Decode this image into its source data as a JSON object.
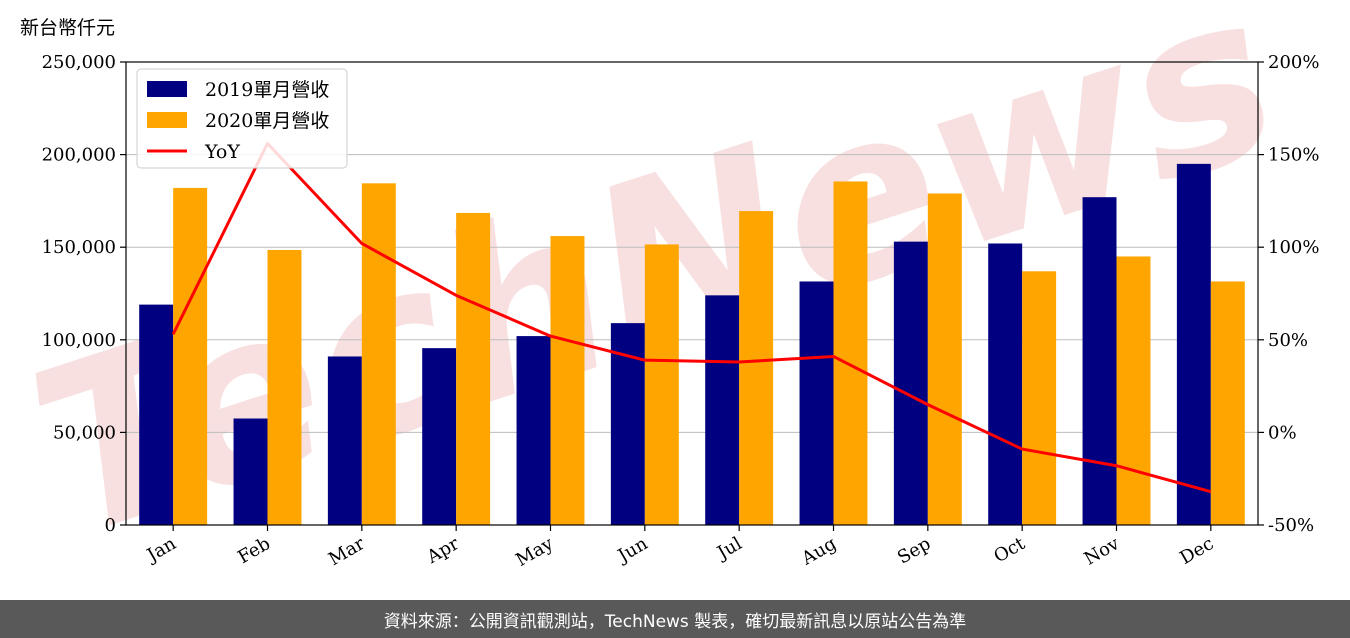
{
  "chart_data": {
    "type": "bar",
    "unit_label": "新台幣仟元",
    "categories": [
      "Jan",
      "Feb",
      "Mar",
      "Apr",
      "May",
      "Jun",
      "Jul",
      "Aug",
      "Sep",
      "Oct",
      "Nov",
      "Dec"
    ],
    "series": [
      {
        "name": "2019單月營收",
        "type": "bar",
        "axis": "left",
        "color": "#000080",
        "values": [
          119000,
          57500,
          91000,
          95500,
          102000,
          109000,
          124000,
          131500,
          153000,
          152000,
          177000,
          195000
        ]
      },
      {
        "name": "2020單月營收",
        "type": "bar",
        "axis": "left",
        "color": "#FFA500",
        "values": [
          182000,
          148500,
          184500,
          168500,
          156000,
          151500,
          169500,
          185500,
          179000,
          137000,
          145000,
          131500
        ]
      },
      {
        "name": "YoY",
        "type": "line",
        "axis": "right",
        "color": "#FF0000",
        "values": [
          53,
          156,
          102,
          74,
          52,
          39,
          38,
          41,
          15,
          -9,
          -18,
          -32
        ]
      }
    ],
    "y_left": {
      "min": 0,
      "max": 250000,
      "ticks": [
        0,
        50000,
        100000,
        150000,
        200000,
        250000
      ],
      "tick_labels": [
        "0",
        "50,000",
        "100,000",
        "150,000",
        "200,000",
        "250,000"
      ]
    },
    "y_right": {
      "min": -50,
      "max": 200,
      "ticks": [
        -50,
        0,
        50,
        100,
        150,
        200
      ],
      "tick_labels": [
        "-50%",
        "0%",
        "50%",
        "100%",
        "150%",
        "200%"
      ]
    },
    "grid": "horizontal",
    "legend_position": "top-left",
    "watermark": "TechNews"
  },
  "footer_text": "資料來源：公開資訊觀測站，TechNews 製表，確切最新訊息以原站公告為準"
}
